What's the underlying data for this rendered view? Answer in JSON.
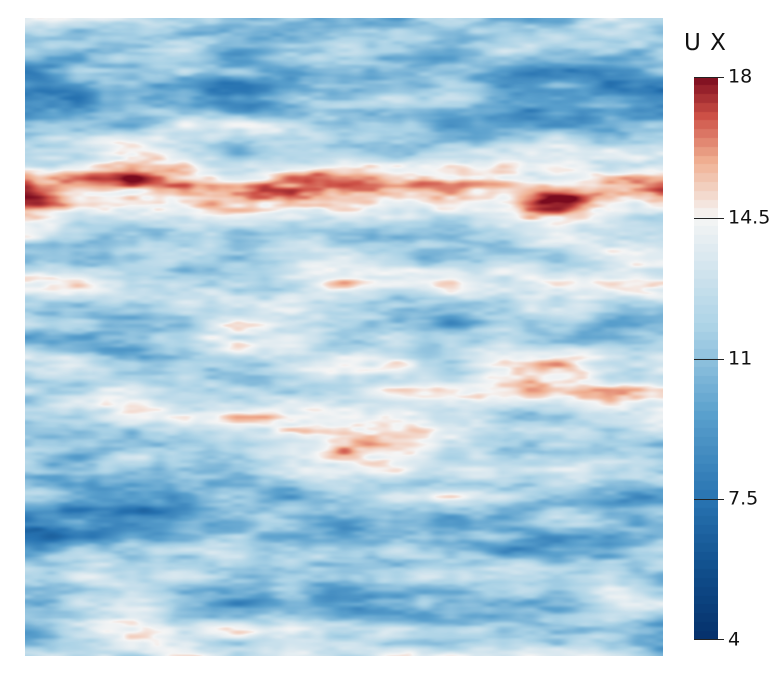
{
  "legend": {
    "title": "U X",
    "range": [
      4,
      18
    ],
    "ticks": [
      {
        "value": 18,
        "label": "18"
      },
      {
        "value": 14.5,
        "label": "14.5"
      },
      {
        "value": 11,
        "label": "11"
      },
      {
        "value": 7.5,
        "label": "7.5"
      },
      {
        "value": 4,
        "label": "4"
      }
    ],
    "colormap": "Cool to Warm (Extended)",
    "color_low": "#05306b",
    "color_mid": "#f5f5f5",
    "color_high": "#7a0a1e"
  }
}
